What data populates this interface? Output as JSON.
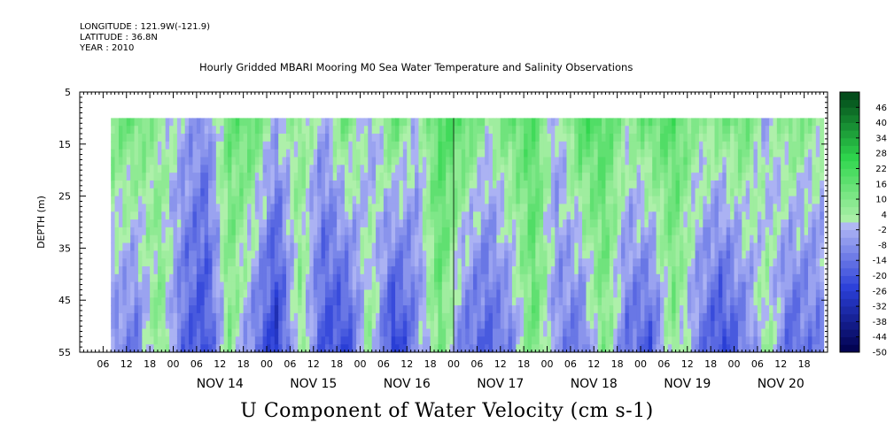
{
  "header": {
    "longitude": "LONGITUDE : 121.9W(-121.9)",
    "latitude": "LATITUDE : 36.8N",
    "year": "YEAR : 2010",
    "title": "Hourly Gridded MBARI Mooring M0 Sea Water Temperature and Salinity Observations"
  },
  "footer": {
    "title": "U Component of Water Velocity (cm s-1)"
  },
  "chart_data": {
    "type": "heatmap",
    "title": "Hourly Gridded MBARI Mooring M0 Sea Water Temperature and Salinity Observations",
    "xlabel": "",
    "ylabel": "DEPTH (m)",
    "ylim": [
      5,
      55
    ],
    "y_inverted": true,
    "x_start_day": 13,
    "x_end_day": 20,
    "x_range_hours": [
      0,
      192
    ],
    "data_start_hour": 8,
    "data_end_hour": 191,
    "depth_range": [
      10,
      55
    ],
    "y_ticks": [
      5,
      15,
      25,
      35,
      45,
      55
    ],
    "x_hour_labels": [
      "06",
      "12",
      "18",
      "00"
    ],
    "day_labels": [
      "NOV 14",
      "NOV 15",
      "NOV 16",
      "NOV 17",
      "NOV 18",
      "NOV 19",
      "NOV 20"
    ],
    "colorbar": {
      "labels": [
        46,
        40,
        34,
        28,
        22,
        16,
        10,
        4,
        -2,
        -8,
        -14,
        -20,
        -26,
        -32,
        -38,
        -44,
        -50
      ],
      "range": [
        -50,
        52
      ],
      "step": 3,
      "colors": {
        "negative_max": "#00004a",
        "negative_mid": "#2a3fd8",
        "negative_light": "#b3b9f5",
        "positive_light": "#b6f2b0",
        "positive_mid": "#2fd64d",
        "positive_max": "#004418"
      }
    },
    "u_velocity_columns": {
      "description_units": "cm s-1",
      "hours": [
        8,
        14,
        20,
        26,
        32,
        38,
        44,
        50,
        56,
        62,
        68,
        74,
        80,
        86,
        92,
        98,
        104,
        110,
        116,
        122,
        128,
        134,
        140,
        146,
        152,
        158,
        164,
        170,
        176,
        182,
        188
      ],
      "surface": [
        12,
        14,
        4,
        -2,
        -8,
        14,
        16,
        -2,
        8,
        -4,
        14,
        -6,
        16,
        -2,
        20,
        18,
        4,
        14,
        18,
        -4,
        20,
        18,
        6,
        16,
        18,
        6,
        10,
        14,
        -4,
        12,
        6
      ],
      "bottom": [
        -8,
        -14,
        10,
        -16,
        -22,
        8,
        -12,
        -28,
        6,
        -20,
        -24,
        8,
        -28,
        -10,
        12,
        -14,
        -18,
        -12,
        14,
        -8,
        -16,
        10,
        -14,
        -20,
        8,
        -10,
        -24,
        -14,
        6,
        -18,
        -12
      ]
    }
  }
}
